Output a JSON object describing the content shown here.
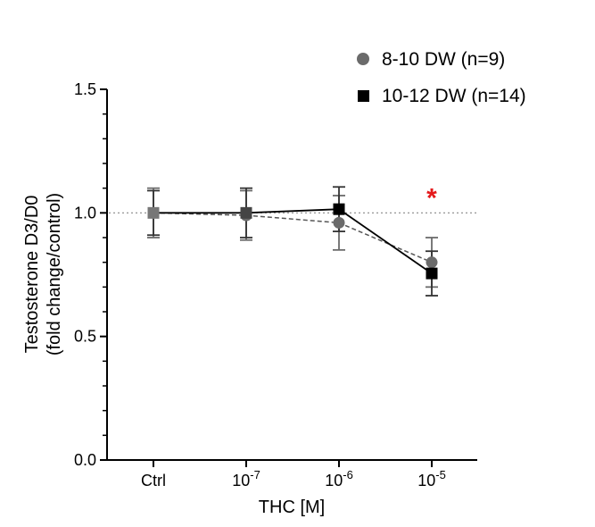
{
  "chart_data": {
    "type": "line",
    "title": "",
    "xlabel": "THC [M]",
    "ylabel_line1": "Testosterone D3/D0",
    "ylabel_line2": "(fold change/control)",
    "categories": [
      {
        "base": "Ctrl",
        "exp": ""
      },
      {
        "base": "10",
        "exp": "-7"
      },
      {
        "base": "10",
        "exp": "-6"
      },
      {
        "base": "10",
        "exp": "-5"
      }
    ],
    "ylim": [
      0.0,
      1.5
    ],
    "yticks": [
      "0.0",
      "0.5",
      "1.0",
      "1.5"
    ],
    "reference_line": 1.0,
    "series": [
      {
        "name": "8-10 DW (n=9)",
        "marker": "circle",
        "color": "#6b6b6b",
        "line_style": "dashed",
        "values": [
          1.0,
          0.99,
          0.96,
          0.8
        ],
        "errors": [
          0.1,
          0.1,
          0.11,
          0.1
        ]
      },
      {
        "name": "10-12 DW (n=14)",
        "marker": "square",
        "color": "#000000",
        "line_style": "solid",
        "values": [
          1.0,
          1.0,
          1.015,
          0.755
        ],
        "errors": [
          0.09,
          0.1,
          0.09,
          0.09
        ]
      }
    ],
    "annotations": [
      {
        "text": "*",
        "category_index": 3,
        "y": 1.105,
        "color": "#e41a1c"
      }
    ],
    "legend_position": "top-right",
    "grid": false
  }
}
